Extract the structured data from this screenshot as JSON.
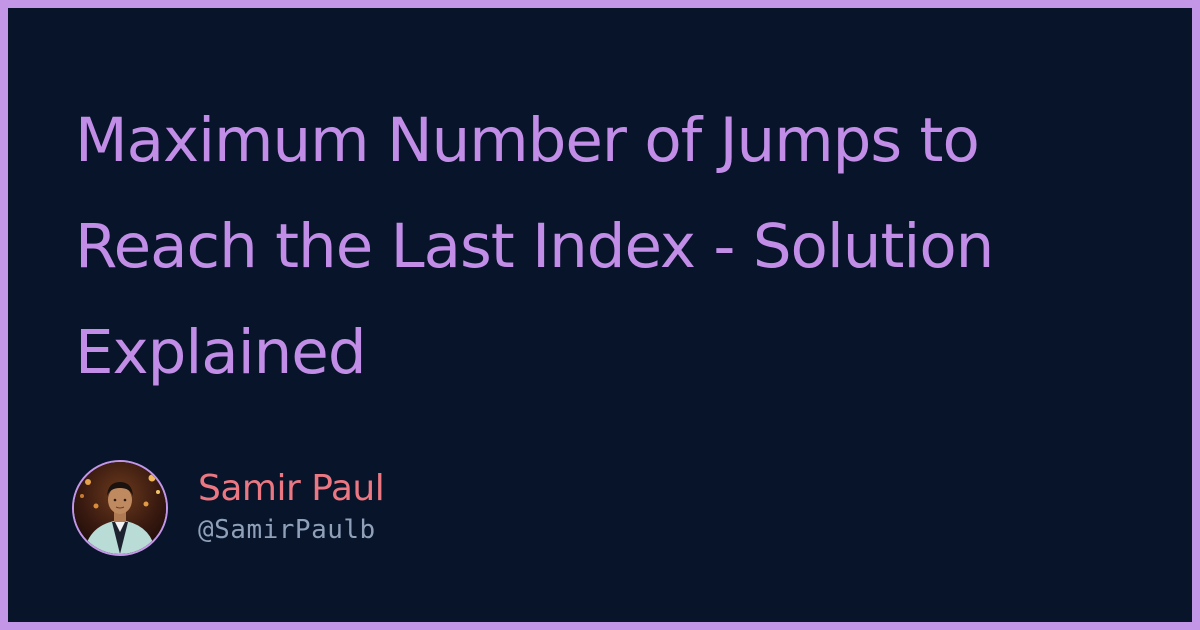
{
  "title": "Maximum Number of Jumps to Reach the Last Index - Solution Explained",
  "author": {
    "name": "Samir Paul",
    "handle": "@SamirPaulb",
    "avatar_icon": "person-portrait"
  },
  "colors": {
    "border": "#c396e8",
    "background": "#07142a",
    "title": "#c18de6",
    "author_name": "#ea7782",
    "author_handle": "#8fa0b8"
  }
}
